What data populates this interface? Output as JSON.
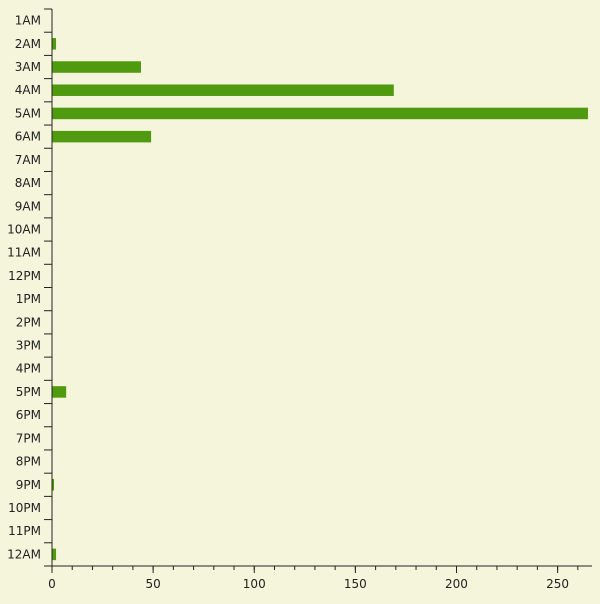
{
  "colors": {
    "background": "#f5f5dc",
    "bar": "#4f9a0e",
    "axis": "#222222"
  },
  "chart_data": {
    "type": "bar",
    "orientation": "horizontal",
    "categories": [
      "1AM",
      "2AM",
      "3AM",
      "4AM",
      "5AM",
      "6AM",
      "7AM",
      "8AM",
      "9AM",
      "10AM",
      "11AM",
      "12PM",
      "1PM",
      "2PM",
      "3PM",
      "4PM",
      "5PM",
      "6PM",
      "7PM",
      "8PM",
      "9PM",
      "10PM",
      "11PM",
      "12AM"
    ],
    "values": [
      0,
      2,
      44,
      169,
      265,
      49,
      0,
      0,
      0,
      0,
      0,
      0,
      0,
      0,
      0,
      0,
      7,
      0,
      0,
      0,
      1,
      0,
      0,
      2
    ],
    "xlim": [
      0,
      267
    ],
    "xticks": [
      0,
      50,
      100,
      150,
      200,
      250
    ],
    "title": "",
    "xlabel": "",
    "ylabel": "",
    "grid": false,
    "legend": "none"
  }
}
